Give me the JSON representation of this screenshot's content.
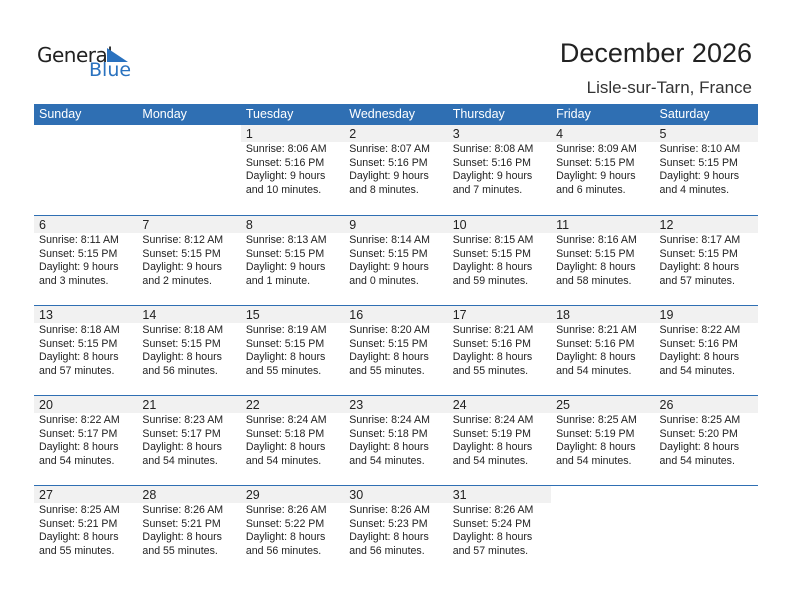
{
  "logo": {
    "general": "General",
    "blue": "Blue"
  },
  "title": "December 2026",
  "location": "Lisle-sur-Tarn, France",
  "colors": {
    "header": "#2f6fb3",
    "date_band": "#f1f1f1",
    "logo_blue": "#2a72bf"
  },
  "days": [
    "Sunday",
    "Monday",
    "Tuesday",
    "Wednesday",
    "Thursday",
    "Friday",
    "Saturday"
  ],
  "weeks": [
    [
      null,
      null,
      {
        "d": "1",
        "sr": "Sunrise: 8:06 AM",
        "ss": "Sunset: 5:16 PM",
        "dl": "Daylight: 9 hours",
        "dm": "and 10 minutes."
      },
      {
        "d": "2",
        "sr": "Sunrise: 8:07 AM",
        "ss": "Sunset: 5:16 PM",
        "dl": "Daylight: 9 hours",
        "dm": "and 8 minutes."
      },
      {
        "d": "3",
        "sr": "Sunrise: 8:08 AM",
        "ss": "Sunset: 5:16 PM",
        "dl": "Daylight: 9 hours",
        "dm": "and 7 minutes."
      },
      {
        "d": "4",
        "sr": "Sunrise: 8:09 AM",
        "ss": "Sunset: 5:15 PM",
        "dl": "Daylight: 9 hours",
        "dm": "and 6 minutes."
      },
      {
        "d": "5",
        "sr": "Sunrise: 8:10 AM",
        "ss": "Sunset: 5:15 PM",
        "dl": "Daylight: 9 hours",
        "dm": "and 4 minutes."
      }
    ],
    [
      {
        "d": "6",
        "sr": "Sunrise: 8:11 AM",
        "ss": "Sunset: 5:15 PM",
        "dl": "Daylight: 9 hours",
        "dm": "and 3 minutes."
      },
      {
        "d": "7",
        "sr": "Sunrise: 8:12 AM",
        "ss": "Sunset: 5:15 PM",
        "dl": "Daylight: 9 hours",
        "dm": "and 2 minutes."
      },
      {
        "d": "8",
        "sr": "Sunrise: 8:13 AM",
        "ss": "Sunset: 5:15 PM",
        "dl": "Daylight: 9 hours",
        "dm": "and 1 minute."
      },
      {
        "d": "9",
        "sr": "Sunrise: 8:14 AM",
        "ss": "Sunset: 5:15 PM",
        "dl": "Daylight: 9 hours",
        "dm": "and 0 minutes."
      },
      {
        "d": "10",
        "sr": "Sunrise: 8:15 AM",
        "ss": "Sunset: 5:15 PM",
        "dl": "Daylight: 8 hours",
        "dm": "and 59 minutes."
      },
      {
        "d": "11",
        "sr": "Sunrise: 8:16 AM",
        "ss": "Sunset: 5:15 PM",
        "dl": "Daylight: 8 hours",
        "dm": "and 58 minutes."
      },
      {
        "d": "12",
        "sr": "Sunrise: 8:17 AM",
        "ss": "Sunset: 5:15 PM",
        "dl": "Daylight: 8 hours",
        "dm": "and 57 minutes."
      }
    ],
    [
      {
        "d": "13",
        "sr": "Sunrise: 8:18 AM",
        "ss": "Sunset: 5:15 PM",
        "dl": "Daylight: 8 hours",
        "dm": "and 57 minutes."
      },
      {
        "d": "14",
        "sr": "Sunrise: 8:18 AM",
        "ss": "Sunset: 5:15 PM",
        "dl": "Daylight: 8 hours",
        "dm": "and 56 minutes."
      },
      {
        "d": "15",
        "sr": "Sunrise: 8:19 AM",
        "ss": "Sunset: 5:15 PM",
        "dl": "Daylight: 8 hours",
        "dm": "and 55 minutes."
      },
      {
        "d": "16",
        "sr": "Sunrise: 8:20 AM",
        "ss": "Sunset: 5:15 PM",
        "dl": "Daylight: 8 hours",
        "dm": "and 55 minutes."
      },
      {
        "d": "17",
        "sr": "Sunrise: 8:21 AM",
        "ss": "Sunset: 5:16 PM",
        "dl": "Daylight: 8 hours",
        "dm": "and 55 minutes."
      },
      {
        "d": "18",
        "sr": "Sunrise: 8:21 AM",
        "ss": "Sunset: 5:16 PM",
        "dl": "Daylight: 8 hours",
        "dm": "and 54 minutes."
      },
      {
        "d": "19",
        "sr": "Sunrise: 8:22 AM",
        "ss": "Sunset: 5:16 PM",
        "dl": "Daylight: 8 hours",
        "dm": "and 54 minutes."
      }
    ],
    [
      {
        "d": "20",
        "sr": "Sunrise: 8:22 AM",
        "ss": "Sunset: 5:17 PM",
        "dl": "Daylight: 8 hours",
        "dm": "and 54 minutes."
      },
      {
        "d": "21",
        "sr": "Sunrise: 8:23 AM",
        "ss": "Sunset: 5:17 PM",
        "dl": "Daylight: 8 hours",
        "dm": "and 54 minutes."
      },
      {
        "d": "22",
        "sr": "Sunrise: 8:24 AM",
        "ss": "Sunset: 5:18 PM",
        "dl": "Daylight: 8 hours",
        "dm": "and 54 minutes."
      },
      {
        "d": "23",
        "sr": "Sunrise: 8:24 AM",
        "ss": "Sunset: 5:18 PM",
        "dl": "Daylight: 8 hours",
        "dm": "and 54 minutes."
      },
      {
        "d": "24",
        "sr": "Sunrise: 8:24 AM",
        "ss": "Sunset: 5:19 PM",
        "dl": "Daylight: 8 hours",
        "dm": "and 54 minutes."
      },
      {
        "d": "25",
        "sr": "Sunrise: 8:25 AM",
        "ss": "Sunset: 5:19 PM",
        "dl": "Daylight: 8 hours",
        "dm": "and 54 minutes."
      },
      {
        "d": "26",
        "sr": "Sunrise: 8:25 AM",
        "ss": "Sunset: 5:20 PM",
        "dl": "Daylight: 8 hours",
        "dm": "and 54 minutes."
      }
    ],
    [
      {
        "d": "27",
        "sr": "Sunrise: 8:25 AM",
        "ss": "Sunset: 5:21 PM",
        "dl": "Daylight: 8 hours",
        "dm": "and 55 minutes."
      },
      {
        "d": "28",
        "sr": "Sunrise: 8:26 AM",
        "ss": "Sunset: 5:21 PM",
        "dl": "Daylight: 8 hours",
        "dm": "and 55 minutes."
      },
      {
        "d": "29",
        "sr": "Sunrise: 8:26 AM",
        "ss": "Sunset: 5:22 PM",
        "dl": "Daylight: 8 hours",
        "dm": "and 56 minutes."
      },
      {
        "d": "30",
        "sr": "Sunrise: 8:26 AM",
        "ss": "Sunset: 5:23 PM",
        "dl": "Daylight: 8 hours",
        "dm": "and 56 minutes."
      },
      {
        "d": "31",
        "sr": "Sunrise: 8:26 AM",
        "ss": "Sunset: 5:24 PM",
        "dl": "Daylight: 8 hours",
        "dm": "and 57 minutes."
      },
      null,
      null
    ]
  ]
}
